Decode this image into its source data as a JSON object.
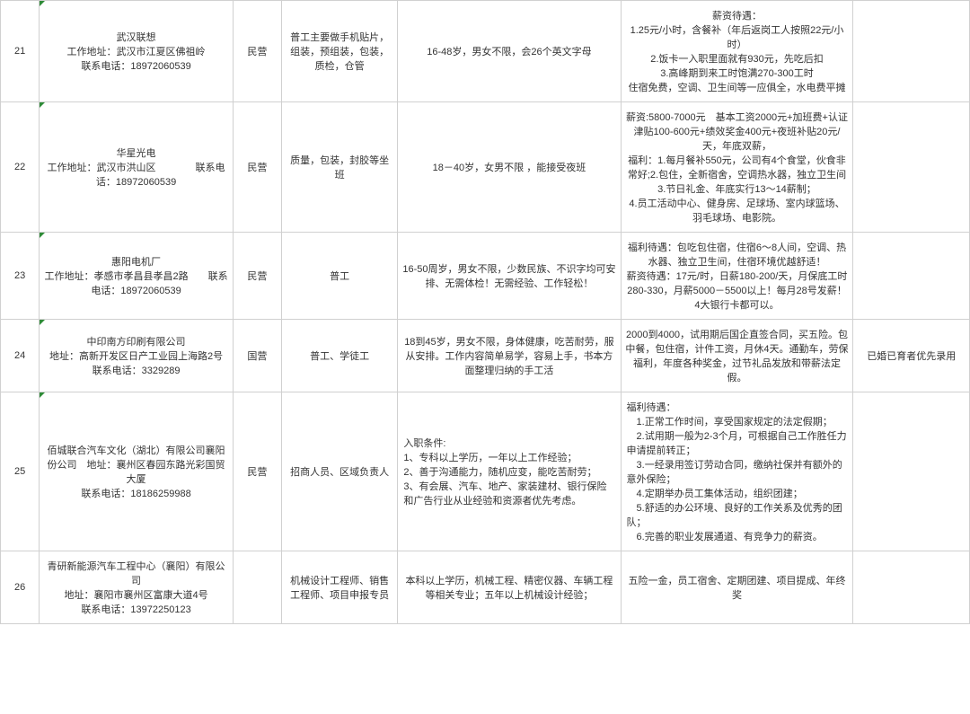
{
  "rows": [
    {
      "num": "21",
      "company": "武汉联想\n工作地址：武汉市江夏区佛祖岭\n联系电话：18972060539",
      "type": "民营",
      "position": "普工主要做手机贴片，组装，预组装，包装，质检，仓管",
      "requirement": "16-48岁，男女不限，会26个英文字母",
      "benefit": "薪资待遇：\n1.25元/小时，含餐补（年后返岗工人按照22元/小时）\n2.饭卡一入职里面就有930元，先吃后扣\n3.高峰期到来工时饱满270-300工时\n住宿免费，空调、卫生间等一应俱全，水电费平摊",
      "note": ""
    },
    {
      "num": "22",
      "company": "华星光电\n工作地址：武汉市洪山区　　　　联系电话：18972060539",
      "type": "民营",
      "position": "质量，包装，封胶等坐班",
      "requirement": "18－40岁，女男不限 ，能接受夜班",
      "benefit": "薪资:5800-7000元　基本工资2000元+加班费+认证津贴100-600元+绩效奖金400元+夜班补贴20元/天，年底双薪，\n福利：1.每月餐补550元，公司有4个食堂，伙食非常好;2.包住，全新宿舍，空调热水器，独立卫生间3.节日礼金、年底实行13～14薪制；\n4.员工活动中心、健身房、足球场、室内球篮场、羽毛球场、电影院。",
      "note": ""
    },
    {
      "num": "23",
      "company": "惠阳电机厂\n工作地址：孝感市孝昌县孝昌2路　　联系电话：18972060539",
      "type": "民营",
      "position": "普工",
      "requirement": "16-50周岁，男女不限，少数民族、不识字均可安排、无需体检！无需经验、工作轻松！",
      "benefit": "福利待遇：包吃包住宿，住宿6～8人间，空调、热水器、独立卫生间，住宿环境优越舒适！\n薪资待遇：17元/时，日薪180-200/天，月保底工时280-330，月薪5000－5500以上！每月28号发薪！4大银行卡都可以。",
      "note": ""
    },
    {
      "num": "24",
      "company": "中印南方印刷有限公司\n地址：高新开发区日产工业园上海路2号\n联系电话：3329289",
      "type": "国营",
      "position": "普工、学徒工",
      "requirement": "18到45岁，男女不限，身体健康，吃苦耐劳，服从安排。工作内容简单易学，容易上手，书本方面整理归纳的手工活",
      "benefit": "2000到4000，试用期后国企直签合同，买五险。包中餐，包住宿，计件工资，月休4天。通勤车，劳保福利，年度各种奖金，过节礼品发放和带薪法定假。",
      "note": "已婚已育者优先录用"
    },
    {
      "num": "25",
      "company": "佰城联合汽车文化（湖北）有限公司襄阳份公司　地址：襄州区春园东路光彩国贸大厦\n联系电话：18186259988",
      "type": "民营",
      "position": "招商人员、区域负责人",
      "requirement": "入职条件:\n1、专科以上学历，一年以上工作经验；\n2、善于沟通能力，随机应变，能吃苦耐劳；\n3、有会展、汽车、地产、家装建材、银行保险和广告行业从业经验和资源者优先考虑。",
      "benefit": "福利待遇：\n　1.正常工作时间，享受国家规定的法定假期；\n　2.试用期一般为2-3个月，可根据自己工作胜任力申请提前转正；\n　3.一经录用签订劳动合同，缴纳社保并有额外的意外保险；\n　4.定期举办员工集体活动，组织团建；\n　5.舒适的办公环境、良好的工作关系及优秀的团队；\n　6.完善的职业发展通道、有竞争力的薪资。",
      "note": ""
    },
    {
      "num": "26",
      "company": "青研新能源汽车工程中心（襄阳）有限公司\n地址：襄阳市襄州区富康大道4号\n联系电话：13972250123",
      "type": "",
      "position": "机械设计工程师、销售工程师、项目申报专员",
      "requirement": "本科以上学历，机械工程、精密仪器、车辆工程等相关专业；五年以上机械设计经验；",
      "benefit": "五险一金，员工宿舍、定期团建、项目提成、年终奖",
      "note": ""
    }
  ]
}
